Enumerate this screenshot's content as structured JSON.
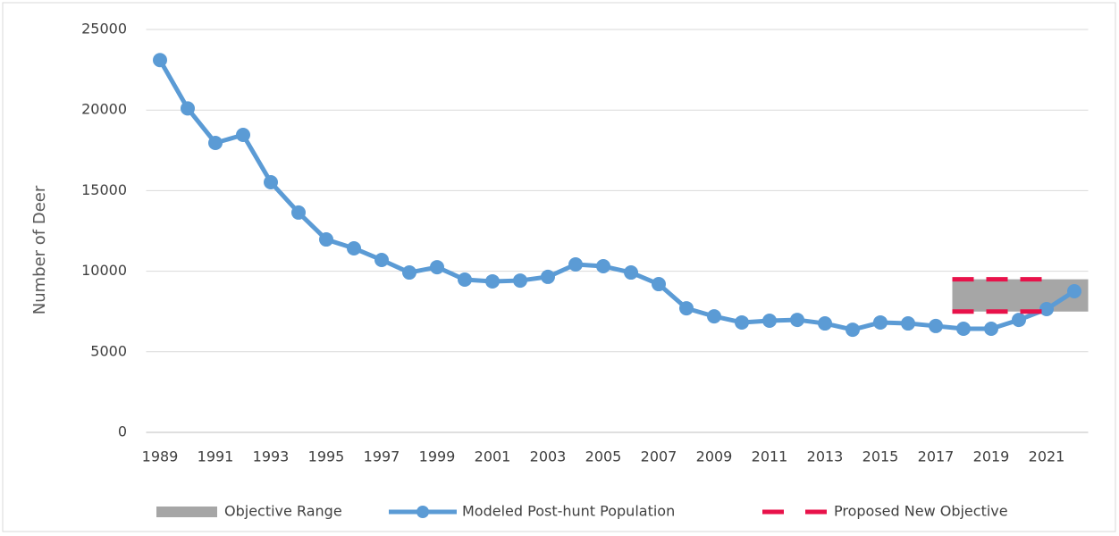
{
  "chart_data": {
    "type": "line",
    "y_axis_label": "Number of Deer",
    "categories": [
      "1989",
      null,
      "1991",
      null,
      "1993",
      null,
      "1995",
      null,
      "1997",
      null,
      "1999",
      null,
      "2001",
      null,
      "2003",
      null,
      "2005",
      null,
      "2007",
      null,
      "2009",
      null,
      "2011",
      null,
      "2013",
      null,
      "2015",
      null,
      "2017",
      null,
      "2019",
      null,
      "2021",
      null
    ],
    "ylim": [
      0,
      25000
    ],
    "yticks": [
      0,
      5000,
      10000,
      15000,
      20000,
      25000
    ],
    "grid": true,
    "legend": "bottom",
    "series": [
      {
        "name": "Objective Range",
        "type": "band",
        "color": "#a6a6a6",
        "low": [
          null,
          null,
          null,
          null,
          null,
          null,
          null,
          null,
          null,
          null,
          null,
          null,
          null,
          null,
          null,
          null,
          null,
          null,
          null,
          null,
          null,
          null,
          null,
          null,
          null,
          null,
          null,
          null,
          null,
          7500,
          7500,
          7500,
          7500,
          7500
        ],
        "high": [
          null,
          null,
          null,
          null,
          null,
          null,
          null,
          null,
          null,
          null,
          null,
          null,
          null,
          null,
          null,
          null,
          null,
          null,
          null,
          null,
          null,
          null,
          null,
          null,
          null,
          null,
          null,
          null,
          null,
          9500,
          9500,
          9500,
          9500,
          9500
        ]
      },
      {
        "name": "Modeled Post-hunt Population",
        "type": "line",
        "color": "#5b9bd5",
        "values": [
          23100,
          20100,
          17960,
          18460,
          15520,
          13640,
          11970,
          11420,
          10700,
          9920,
          10250,
          9480,
          9370,
          9420,
          9650,
          10420,
          10310,
          9920,
          9200,
          7700,
          7200,
          6820,
          6930,
          6980,
          6760,
          6370,
          6820,
          6760,
          6600,
          6430,
          6430,
          6980,
          7650,
          8760
        ]
      },
      {
        "name": "Proposed New Objective",
        "type": "dashed",
        "color": "#e8124a",
        "low": [
          null,
          null,
          null,
          null,
          null,
          null,
          null,
          null,
          null,
          null,
          null,
          null,
          null,
          null,
          null,
          null,
          null,
          null,
          null,
          null,
          null,
          null,
          null,
          null,
          null,
          null,
          null,
          null,
          null,
          7500,
          7500,
          7500,
          7500,
          null
        ],
        "high": [
          null,
          null,
          null,
          null,
          null,
          null,
          null,
          null,
          null,
          null,
          null,
          null,
          null,
          null,
          null,
          null,
          null,
          null,
          null,
          null,
          null,
          null,
          null,
          null,
          null,
          null,
          null,
          null,
          null,
          9500,
          9500,
          9500,
          9500,
          null
        ]
      }
    ]
  }
}
